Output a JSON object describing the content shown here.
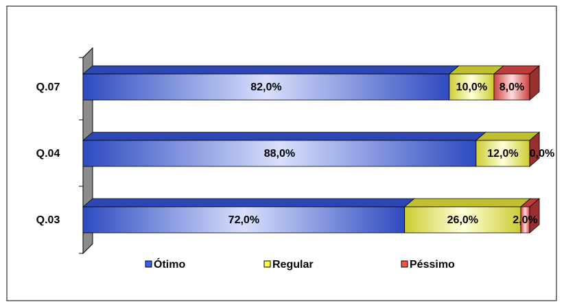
{
  "chart_data": {
    "type": "stacked-bar-3d",
    "categories": [
      "Q.07",
      "Q.04",
      "Q.03"
    ],
    "series": [
      {
        "name": "Ótimo",
        "color": "#3a5ef0",
        "values": [
          82,
          88,
          72
        ],
        "value_labels": [
          "82,0%",
          "88,0%",
          "72,0%"
        ]
      },
      {
        "name": "Regular",
        "color": "#ffff40",
        "values": [
          10,
          12,
          26
        ],
        "value_labels": [
          "10,0%",
          "12,0%",
          "26,0%"
        ]
      },
      {
        "name": "Péssimo",
        "color": "#ff5050",
        "values": [
          8,
          0,
          2
        ],
        "value_labels": [
          "8,0%",
          "0,0%",
          "2,0%"
        ]
      }
    ],
    "xlim": [
      0,
      100
    ],
    "legend": "bottom"
  }
}
